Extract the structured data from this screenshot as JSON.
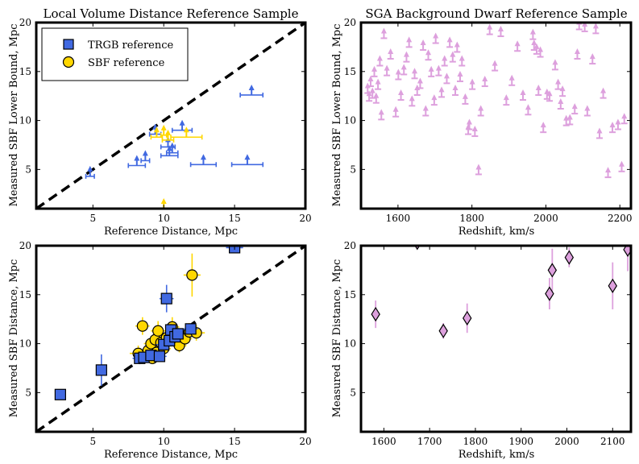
{
  "figure": {
    "panels": [
      {
        "id": "p1",
        "title": "Local Volume Distance Reference Sample",
        "xlabel": "Reference Distance, Mpc",
        "ylabel": "Measured SBF Lower Bound, Mpc"
      },
      {
        "id": "p2",
        "title": "SGA Background Dwarf Reference Sample",
        "xlabel": "Redshift, km/s",
        "ylabel": "Measured SBF Lower Bound, Mpc"
      },
      {
        "id": "p3",
        "title": "",
        "xlabel": "Reference Distance, Mpc",
        "ylabel": "Measured SBF Distance, Mpc"
      },
      {
        "id": "p4",
        "title": "",
        "xlabel": "Redshift, km/s",
        "ylabel": "Measured SBF Distance, Mpc"
      }
    ],
    "legend": [
      {
        "label": "TRGB reference",
        "marker": "square",
        "color": "#4169e1"
      },
      {
        "label": "SBF reference",
        "marker": "circle",
        "color": "#ffd700"
      }
    ]
  },
  "colors": {
    "trgb": "#4169e1",
    "sbf": "#ffd700",
    "sga": "#dda0dd",
    "frame": "#000000",
    "one_to_one": "#000000"
  },
  "chart_data": [
    {
      "type": "scatter",
      "title": "Local Volume Distance Reference Sample",
      "xlabel": "Reference Distance, Mpc",
      "ylabel": "Measured SBF Lower Bound, Mpc",
      "xlim": [
        1,
        20
      ],
      "ylim": [
        1,
        20
      ],
      "xticks": [
        5,
        10,
        15,
        20
      ],
      "yticks": [
        5,
        10,
        15,
        20
      ],
      "grid": false,
      "legend_position": "top-left",
      "one_to_one_line": true,
      "markers": "lower-limit arrows",
      "series": [
        {
          "name": "TRGB reference",
          "color": "#4169e1",
          "points": [
            {
              "x": 16.2,
              "y": 12.6,
              "xerr": 0.8
            },
            {
              "x": 9.4,
              "y": 8.6,
              "xerr": 0.4
            },
            {
              "x": 11.3,
              "y": 9.0,
              "xerr": 0.7
            },
            {
              "x": 10.3,
              "y": 7.3,
              "xerr": 0.5
            },
            {
              "x": 10.6,
              "y": 6.7,
              "xerr": 0.4
            },
            {
              "x": 10.4,
              "y": 6.4,
              "xerr": 0.6
            },
            {
              "x": 8.7,
              "y": 5.9,
              "xerr": 0.3
            },
            {
              "x": 8.1,
              "y": 5.4,
              "xerr": 0.6
            },
            {
              "x": 12.8,
              "y": 5.5,
              "xerr": 0.9
            },
            {
              "x": 15.9,
              "y": 5.5,
              "xerr": 1.1
            },
            {
              "x": 4.8,
              "y": 4.3,
              "xerr": 0.3
            }
          ]
        },
        {
          "name": "SBF reference",
          "color": "#ffd700",
          "points": [
            {
              "x": 9.5,
              "y": 8.3,
              "xerr": 0.4
            },
            {
              "x": 10.0,
              "y": 8.5,
              "xerr": 0.2
            },
            {
              "x": 10.3,
              "y": 8.0,
              "xerr": 0.4
            },
            {
              "x": 11.6,
              "y": 8.3,
              "xerr": 1.1
            },
            {
              "x": 10.0,
              "y": 1.0,
              "xerr": 0.0
            }
          ]
        }
      ]
    },
    {
      "type": "scatter",
      "title": "SGA Background Dwarf Reference Sample",
      "xlabel": "Redshift, km/s",
      "ylabel": "Measured SBF Lower Bound, Mpc",
      "xlim": [
        1500,
        2230
      ],
      "ylim": [
        1,
        20
      ],
      "xticks": [
        1600,
        1800,
        2000,
        2200
      ],
      "yticks": [
        5,
        10,
        15,
        20
      ],
      "grid": false,
      "markers": "lower-limit arrows",
      "series": [
        {
          "name": "",
          "color": "#dda0dd",
          "points": [
            {
              "x": 1518,
              "y": 12.8
            },
            {
              "x": 1522,
              "y": 12.0
            },
            {
              "x": 1526,
              "y": 13.5
            },
            {
              "x": 1531,
              "y": 12.3
            },
            {
              "x": 1536,
              "y": 14.5
            },
            {
              "x": 1541,
              "y": 11.8
            },
            {
              "x": 1546,
              "y": 13.2
            },
            {
              "x": 1551,
              "y": 15.6
            },
            {
              "x": 1555,
              "y": 10.1
            },
            {
              "x": 1562,
              "y": 18.4
            },
            {
              "x": 1570,
              "y": 14.6
            },
            {
              "x": 1580,
              "y": 16.3
            },
            {
              "x": 1594,
              "y": 10.4
            },
            {
              "x": 1601,
              "y": 14.2
            },
            {
              "x": 1608,
              "y": 12.1
            },
            {
              "x": 1616,
              "y": 14.7
            },
            {
              "x": 1623,
              "y": 16.0
            },
            {
              "x": 1630,
              "y": 17.5
            },
            {
              "x": 1638,
              "y": 11.5
            },
            {
              "x": 1645,
              "y": 14.3
            },
            {
              "x": 1652,
              "y": 12.6
            },
            {
              "x": 1660,
              "y": 13.3
            },
            {
              "x": 1668,
              "y": 17.2
            },
            {
              "x": 1675,
              "y": 10.5
            },
            {
              "x": 1682,
              "y": 16.2
            },
            {
              "x": 1690,
              "y": 14.5
            },
            {
              "x": 1698,
              "y": 11.6
            },
            {
              "x": 1702,
              "y": 17.9
            },
            {
              "x": 1710,
              "y": 14.6
            },
            {
              "x": 1718,
              "y": 12.4
            },
            {
              "x": 1726,
              "y": 15.6
            },
            {
              "x": 1732,
              "y": 13.8
            },
            {
              "x": 1740,
              "y": 17.5
            },
            {
              "x": 1748,
              "y": 16.0
            },
            {
              "x": 1755,
              "y": 12.6
            },
            {
              "x": 1760,
              "y": 17.0
            },
            {
              "x": 1768,
              "y": 14.0
            },
            {
              "x": 1773,
              "y": 15.6
            },
            {
              "x": 1782,
              "y": 11.7
            },
            {
              "x": 1790,
              "y": 8.6
            },
            {
              "x": 1793,
              "y": 9.1
            },
            {
              "x": 1801,
              "y": 13.2
            },
            {
              "x": 1808,
              "y": 8.4
            },
            {
              "x": 1818,
              "y": 4.5
            },
            {
              "x": 1824,
              "y": 10.5
            },
            {
              "x": 1835,
              "y": 13.5
            },
            {
              "x": 1848,
              "y": 18.8
            },
            {
              "x": 1862,
              "y": 15.1
            },
            {
              "x": 1878,
              "y": 18.6
            },
            {
              "x": 1893,
              "y": 11.6
            },
            {
              "x": 1908,
              "y": 13.6
            },
            {
              "x": 1923,
              "y": 17.1
            },
            {
              "x": 1938,
              "y": 12.1
            },
            {
              "x": 1952,
              "y": 10.6
            },
            {
              "x": 1965,
              "y": 18.3
            },
            {
              "x": 1968,
              "y": 17.2
            },
            {
              "x": 1975,
              "y": 16.8
            },
            {
              "x": 1980,
              "y": 12.6
            },
            {
              "x": 1985,
              "y": 16.5
            },
            {
              "x": 1993,
              "y": 8.8
            },
            {
              "x": 2003,
              "y": 12.2
            },
            {
              "x": 2010,
              "y": 12.0
            },
            {
              "x": 2025,
              "y": 15.2
            },
            {
              "x": 2033,
              "y": 13.2
            },
            {
              "x": 2040,
              "y": 11.2
            },
            {
              "x": 2045,
              "y": 12.5
            },
            {
              "x": 2055,
              "y": 9.5
            },
            {
              "x": 2065,
              "y": 9.6
            },
            {
              "x": 2078,
              "y": 10.7
            },
            {
              "x": 2085,
              "y": 16.3
            },
            {
              "x": 2090,
              "y": 19.3
            },
            {
              "x": 2105,
              "y": 19.1
            },
            {
              "x": 2112,
              "y": 10.5
            },
            {
              "x": 2126,
              "y": 15.8
            },
            {
              "x": 2135,
              "y": 18.9
            },
            {
              "x": 2145,
              "y": 8.2
            },
            {
              "x": 2155,
              "y": 12.3
            },
            {
              "x": 2168,
              "y": 4.2
            },
            {
              "x": 2180,
              "y": 8.8
            },
            {
              "x": 2195,
              "y": 9.1
            },
            {
              "x": 2205,
              "y": 4.8
            },
            {
              "x": 2212,
              "y": 9.7
            }
          ]
        }
      ]
    },
    {
      "type": "scatter",
      "title": "",
      "xlabel": "Reference Distance, Mpc",
      "ylabel": "Measured SBF Distance, Mpc",
      "xlim": [
        1,
        20
      ],
      "ylim": [
        1,
        20
      ],
      "xticks": [
        5,
        10,
        15,
        20
      ],
      "yticks": [
        5,
        10,
        15,
        20
      ],
      "grid": false,
      "one_to_one_line": true,
      "series": [
        {
          "name": "TRGB reference",
          "marker": "square",
          "color": "#4169e1",
          "points": [
            {
              "x": 2.7,
              "y": 4.8,
              "xerr": 0.0,
              "yerr": 0.0
            },
            {
              "x": 5.6,
              "y": 7.3,
              "xerr": 0.3,
              "yerr": 1.6
            },
            {
              "x": 8.3,
              "y": 8.5,
              "xerr": 0.5,
              "yerr": 0.6
            },
            {
              "x": 8.6,
              "y": 8.6,
              "xerr": 0.4,
              "yerr": 0.5
            },
            {
              "x": 9.1,
              "y": 8.8,
              "xerr": 0.4,
              "yerr": 0.6
            },
            {
              "x": 9.7,
              "y": 8.7,
              "xerr": 0.5,
              "yerr": 0.5
            },
            {
              "x": 10.0,
              "y": 9.9,
              "xerr": 0.5,
              "yerr": 0.7
            },
            {
              "x": 10.2,
              "y": 14.6,
              "xerr": 0.5,
              "yerr": 1.4
            },
            {
              "x": 10.4,
              "y": 10.3,
              "xerr": 0.4,
              "yerr": 0.6
            },
            {
              "x": 10.5,
              "y": 11.4,
              "xerr": 0.4,
              "yerr": 0.6
            },
            {
              "x": 10.8,
              "y": 10.7,
              "xerr": 0.5,
              "yerr": 0.6
            },
            {
              "x": 11.0,
              "y": 11.0,
              "xerr": 0.4,
              "yerr": 0.6
            },
            {
              "x": 11.9,
              "y": 11.5,
              "xerr": 0.5,
              "yerr": 0.5
            },
            {
              "x": 15.0,
              "y": 19.8,
              "xerr": 0.6,
              "yerr": 0.5
            }
          ]
        },
        {
          "name": "SBF reference",
          "marker": "circle",
          "color": "#ffd700",
          "points": [
            {
              "x": 8.2,
              "y": 9.0,
              "xerr": 0.6,
              "yerr": 0.8
            },
            {
              "x": 8.5,
              "y": 11.8,
              "xerr": 0.5,
              "yerr": 0.9
            },
            {
              "x": 8.9,
              "y": 9.3,
              "xerr": 0.5,
              "yerr": 0.7
            },
            {
              "x": 9.1,
              "y": 10.0,
              "xerr": 0.5,
              "yerr": 0.8
            },
            {
              "x": 9.2,
              "y": 8.5,
              "xerr": 0.4,
              "yerr": 0.6
            },
            {
              "x": 9.4,
              "y": 10.4,
              "xerr": 0.5,
              "yerr": 0.8
            },
            {
              "x": 9.5,
              "y": 9.1,
              "xerr": 0.4,
              "yerr": 0.7
            },
            {
              "x": 9.6,
              "y": 11.3,
              "xerr": 0.5,
              "yerr": 1.0
            },
            {
              "x": 9.8,
              "y": 10.1,
              "xerr": 0.4,
              "yerr": 0.7
            },
            {
              "x": 10.0,
              "y": 9.5,
              "xerr": 0.5,
              "yerr": 0.7
            },
            {
              "x": 10.2,
              "y": 10.6,
              "xerr": 0.4,
              "yerr": 0.8
            },
            {
              "x": 10.6,
              "y": 11.7,
              "xerr": 0.5,
              "yerr": 1.0
            },
            {
              "x": 10.9,
              "y": 10.2,
              "xerr": 0.4,
              "yerr": 0.7
            },
            {
              "x": 11.1,
              "y": 9.8,
              "xerr": 0.5,
              "yerr": 0.7
            },
            {
              "x": 11.5,
              "y": 10.5,
              "xerr": 0.5,
              "yerr": 0.8
            },
            {
              "x": 11.8,
              "y": 11.2,
              "xerr": 0.6,
              "yerr": 0.9
            },
            {
              "x": 12.0,
              "y": 17.0,
              "xerr": 0.6,
              "yerr": 2.2
            },
            {
              "x": 12.3,
              "y": 11.1,
              "xerr": 0.6,
              "yerr": 0.8
            }
          ]
        }
      ]
    },
    {
      "type": "scatter",
      "title": "",
      "xlabel": "Redshift, km/s",
      "ylabel": "Measured SBF Distance, Mpc",
      "xlim": [
        1550,
        2140
      ],
      "ylim": [
        1,
        20
      ],
      "xticks": [
        1600,
        1700,
        1800,
        1900,
        2000,
        2100
      ],
      "yticks": [
        5,
        10,
        15,
        20
      ],
      "grid": false,
      "series": [
        {
          "name": "",
          "marker": "diamond",
          "color": "#dda0dd",
          "points": [
            {
              "x": 1582,
              "y": 13.0,
              "yerr": 1.4
            },
            {
              "x": 1730,
              "y": 11.3,
              "yerr": 0.8
            },
            {
              "x": 1782,
              "y": 12.6,
              "yerr": 1.5
            },
            {
              "x": 1962,
              "y": 15.1,
              "yerr": 1.6
            },
            {
              "x": 1968,
              "y": 17.5,
              "yerr": 2.2
            },
            {
              "x": 2005,
              "y": 18.8,
              "yerr": 1.0
            },
            {
              "x": 2100,
              "y": 15.9,
              "yerr": 2.4
            },
            {
              "x": 1673,
              "y": 20.3,
              "yerr": 0.6
            },
            {
              "x": 2133,
              "y": 19.6,
              "yerr": 2.2
            }
          ]
        }
      ]
    }
  ]
}
